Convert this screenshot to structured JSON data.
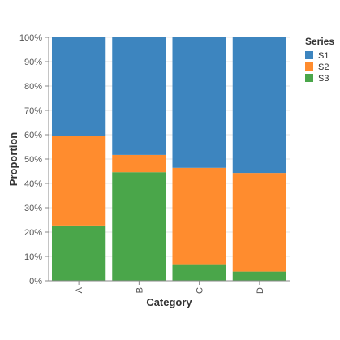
{
  "chart_data": {
    "type": "bar",
    "stacked": true,
    "normalized": true,
    "categories": [
      "A",
      "B",
      "C",
      "D"
    ],
    "series": [
      {
        "name": "S3",
        "color": "#4aa64a",
        "values": [
          22.7,
          44.6,
          6.8,
          3.8
        ]
      },
      {
        "name": "S2",
        "color": "#ff8c2e",
        "values": [
          36.9,
          7.1,
          39.6,
          40.5
        ]
      },
      {
        "name": "S1",
        "color": "#3d85bf",
        "values": [
          40.4,
          48.3,
          53.6,
          55.7
        ]
      }
    ],
    "xlabel": "Category",
    "ylabel": "Proportion",
    "ylim": [
      0,
      100
    ],
    "y_ticks": [
      "0%",
      "10%",
      "20%",
      "30%",
      "40%",
      "50%",
      "60%",
      "70%",
      "80%",
      "90%",
      "100%"
    ],
    "grid": true,
    "legend": {
      "title": "Series",
      "position": "top-right",
      "items": [
        "S1",
        "S2",
        "S3"
      ]
    }
  }
}
